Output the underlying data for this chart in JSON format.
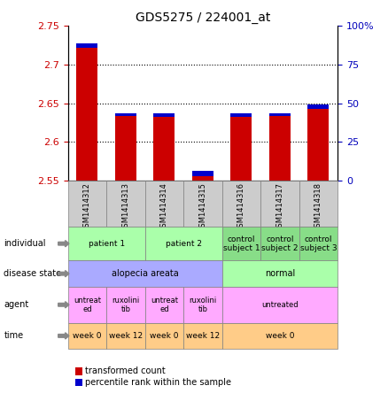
{
  "title": "GDS5275 / 224001_at",
  "samples": [
    "GSM1414312",
    "GSM1414313",
    "GSM1414314",
    "GSM1414315",
    "GSM1414316",
    "GSM1414317",
    "GSM1414318"
  ],
  "red_values": [
    2.728,
    2.637,
    2.637,
    2.562,
    2.637,
    2.637,
    2.648
  ],
  "blue_heights": [
    0.006,
    0.004,
    0.005,
    0.007,
    0.005,
    0.004,
    0.005
  ],
  "ylim": [
    2.55,
    2.75
  ],
  "yticks": [
    2.55,
    2.6,
    2.65,
    2.7,
    2.75
  ],
  "y2ticks": [
    0,
    25,
    50,
    75,
    100
  ],
  "y2labels": [
    "0",
    "25",
    "50",
    "75",
    "100%"
  ],
  "bar_width": 0.55,
  "background_color": "#ffffff",
  "bar_color_red": "#cc0000",
  "bar_color_blue": "#0000cc",
  "label_color_red": "#cc0000",
  "label_color_blue": "#0000bb",
  "ind_data": [
    [
      0,
      2,
      "patient 1",
      "#aaffaa"
    ],
    [
      2,
      4,
      "patient 2",
      "#aaffaa"
    ],
    [
      4,
      5,
      "control\nsubject 1",
      "#88dd88"
    ],
    [
      5,
      6,
      "control\nsubject 2",
      "#88dd88"
    ],
    [
      6,
      7,
      "control\nsubject 3",
      "#88dd88"
    ]
  ],
  "dis_data": [
    [
      0,
      4,
      "alopecia areata",
      "#aaaaff"
    ],
    [
      4,
      7,
      "normal",
      "#aaffaa"
    ]
  ],
  "agent_data": [
    [
      0,
      1,
      "untreat\ned",
      "#ffaaff"
    ],
    [
      1,
      2,
      "ruxolini\ntib",
      "#ffaaff"
    ],
    [
      2,
      3,
      "untreat\ned",
      "#ffaaff"
    ],
    [
      3,
      4,
      "ruxolini\ntib",
      "#ffaaff"
    ],
    [
      4,
      7,
      "untreated",
      "#ffaaff"
    ]
  ],
  "time_data": [
    [
      0,
      1,
      "week 0",
      "#ffcc88"
    ],
    [
      1,
      2,
      "week 12",
      "#ffcc88"
    ],
    [
      2,
      3,
      "week 0",
      "#ffcc88"
    ],
    [
      3,
      4,
      "week 12",
      "#ffcc88"
    ],
    [
      4,
      7,
      "week 0",
      "#ffcc88"
    ]
  ]
}
